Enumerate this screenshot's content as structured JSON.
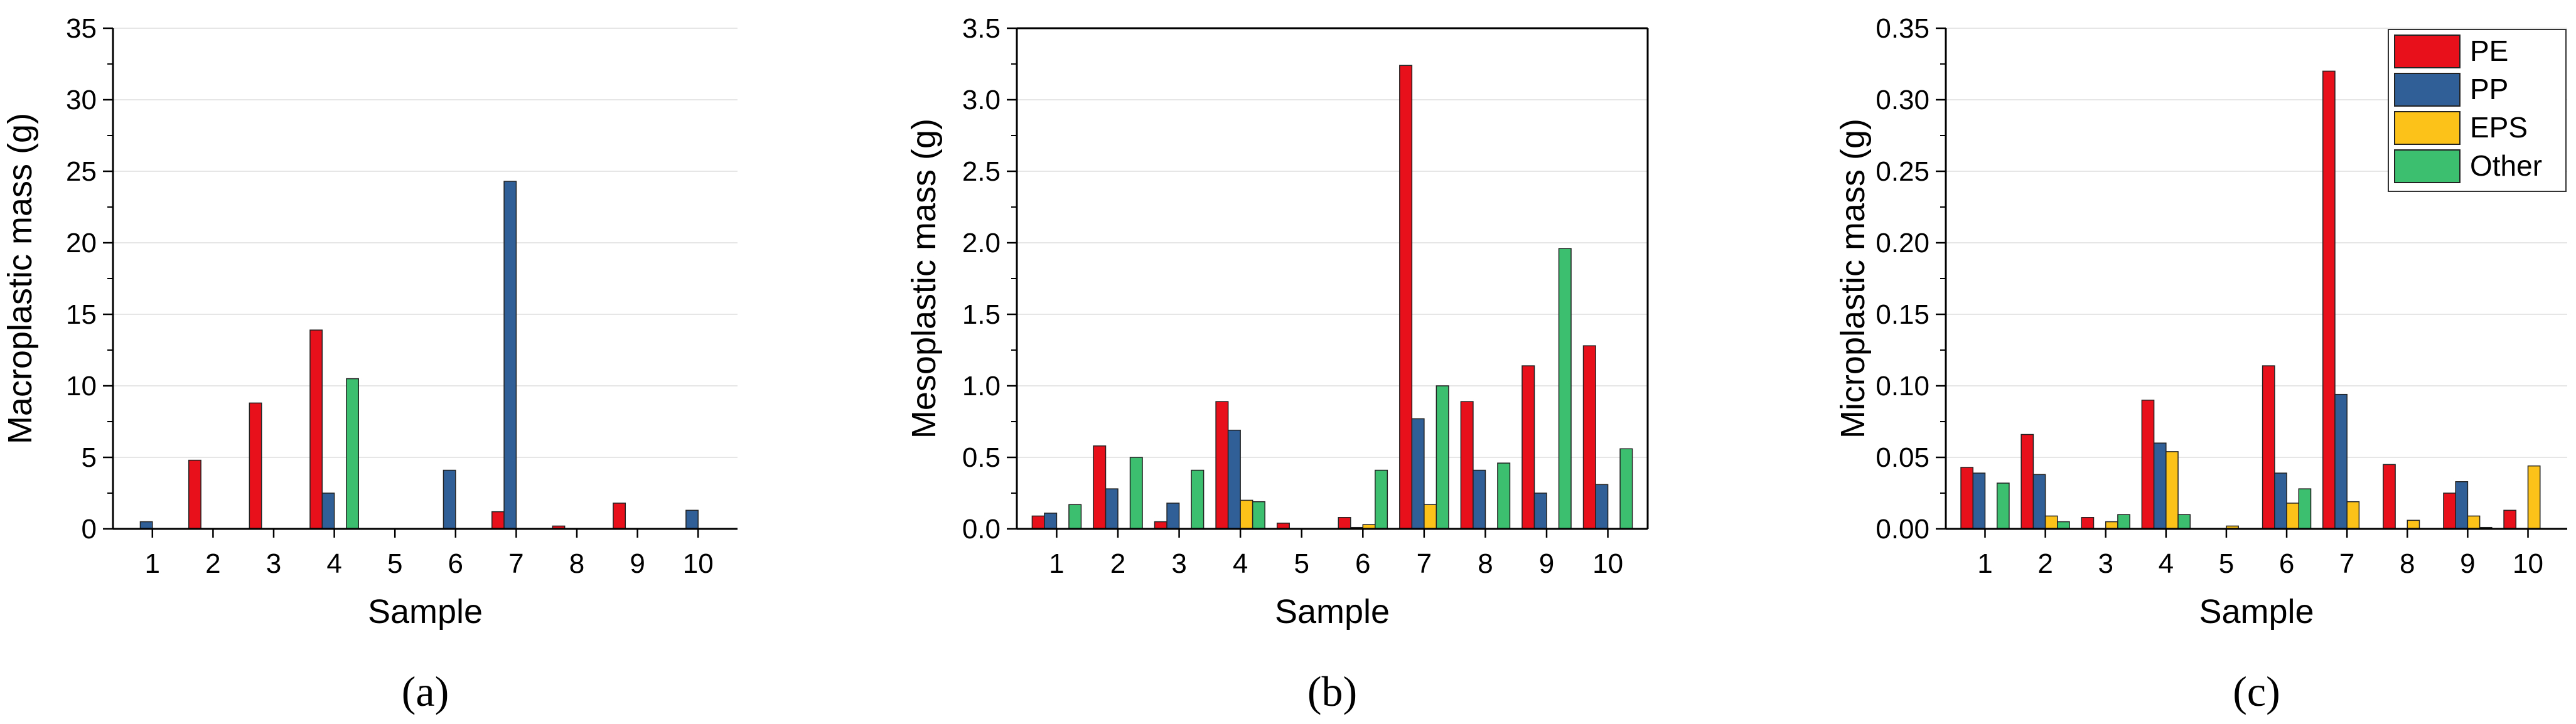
{
  "colors": {
    "PE": "#e8101a",
    "PP": "#2f5f96",
    "EPS": "#fcc21a",
    "Other": "#3cbf6e",
    "grid": "#e6e6e6"
  },
  "chart_data": [
    {
      "type": "bar",
      "panel_label": "(a)",
      "xlabel": "Sample",
      "ylabel": "Macroplastic mass (g)",
      "categories": [
        "1",
        "2",
        "3",
        "4",
        "5",
        "6",
        "7",
        "8",
        "9",
        "10"
      ],
      "ylim": [
        0,
        35
      ],
      "yticks": [
        "0",
        "5",
        "10",
        "15",
        "20",
        "25",
        "30",
        "35"
      ],
      "grid": true,
      "series": [
        {
          "name": "PE",
          "values": [
            0,
            4.8,
            8.8,
            13.9,
            0,
            0,
            1.2,
            0.2,
            1.8,
            0
          ]
        },
        {
          "name": "PP",
          "values": [
            0.5,
            0,
            0,
            2.5,
            0,
            4.1,
            24.3,
            0,
            0,
            1.3
          ]
        },
        {
          "name": "EPS",
          "values": [
            0,
            0,
            0,
            0,
            0,
            0,
            0,
            0,
            0,
            0
          ]
        },
        {
          "name": "Other",
          "values": [
            0,
            0,
            0,
            10.5,
            0,
            0,
            0,
            0,
            0,
            0
          ]
        }
      ]
    },
    {
      "type": "bar",
      "panel_label": "(b)",
      "xlabel": "Sample",
      "ylabel": "Mesoplastic mass (g)",
      "categories": [
        "1",
        "2",
        "3",
        "4",
        "5",
        "6",
        "7",
        "8",
        "9",
        "10"
      ],
      "ylim": [
        0,
        3.5
      ],
      "yticks": [
        "0.0",
        "0.5",
        "1.0",
        "1.5",
        "2.0",
        "2.5",
        "3.0",
        "3.5"
      ],
      "grid": true,
      "series": [
        {
          "name": "PE",
          "values": [
            0.09,
            0.58,
            0.05,
            0.89,
            0.04,
            0.08,
            3.24,
            0.89,
            1.14,
            1.28
          ]
        },
        {
          "name": "PP",
          "values": [
            0.11,
            0.28,
            0.18,
            0.69,
            0,
            0.01,
            0.77,
            0.41,
            0.25,
            0.31
          ]
        },
        {
          "name": "EPS",
          "values": [
            0,
            0,
            0,
            0.2,
            0,
            0.03,
            0.17,
            0,
            0,
            0
          ]
        },
        {
          "name": "Other",
          "values": [
            0.17,
            0.5,
            0.41,
            0.19,
            0,
            0.41,
            1.0,
            0.46,
            1.96,
            0.56
          ]
        }
      ]
    },
    {
      "type": "bar",
      "panel_label": "(c)",
      "xlabel": "Sample",
      "ylabel": "Microplastic mass (g)",
      "categories": [
        "1",
        "2",
        "3",
        "4",
        "5",
        "6",
        "7",
        "8",
        "9",
        "10"
      ],
      "ylim": [
        0,
        0.35
      ],
      "yticks": [
        "0.00",
        "0.05",
        "0.10",
        "0.15",
        "0.20",
        "0.25",
        "0.30",
        "0.35"
      ],
      "grid": true,
      "legend": {
        "placement": "top-right",
        "entries": [
          "PE",
          "PP",
          "EPS",
          "Other"
        ]
      },
      "series": [
        {
          "name": "PE",
          "values": [
            0.043,
            0.066,
            0.008,
            0.09,
            0,
            0.114,
            0.32,
            0.045,
            0.025,
            0.013
          ]
        },
        {
          "name": "PP",
          "values": [
            0.039,
            0.038,
            0,
            0.06,
            0,
            0.039,
            0.094,
            0,
            0.033,
            0
          ]
        },
        {
          "name": "EPS",
          "values": [
            0,
            0.009,
            0.005,
            0.054,
            0.002,
            0.018,
            0.019,
            0.006,
            0.009,
            0.044
          ]
        },
        {
          "name": "Other",
          "values": [
            0.032,
            0.005,
            0.01,
            0.01,
            0,
            0.028,
            0,
            0,
            0.001,
            0
          ]
        }
      ]
    }
  ]
}
